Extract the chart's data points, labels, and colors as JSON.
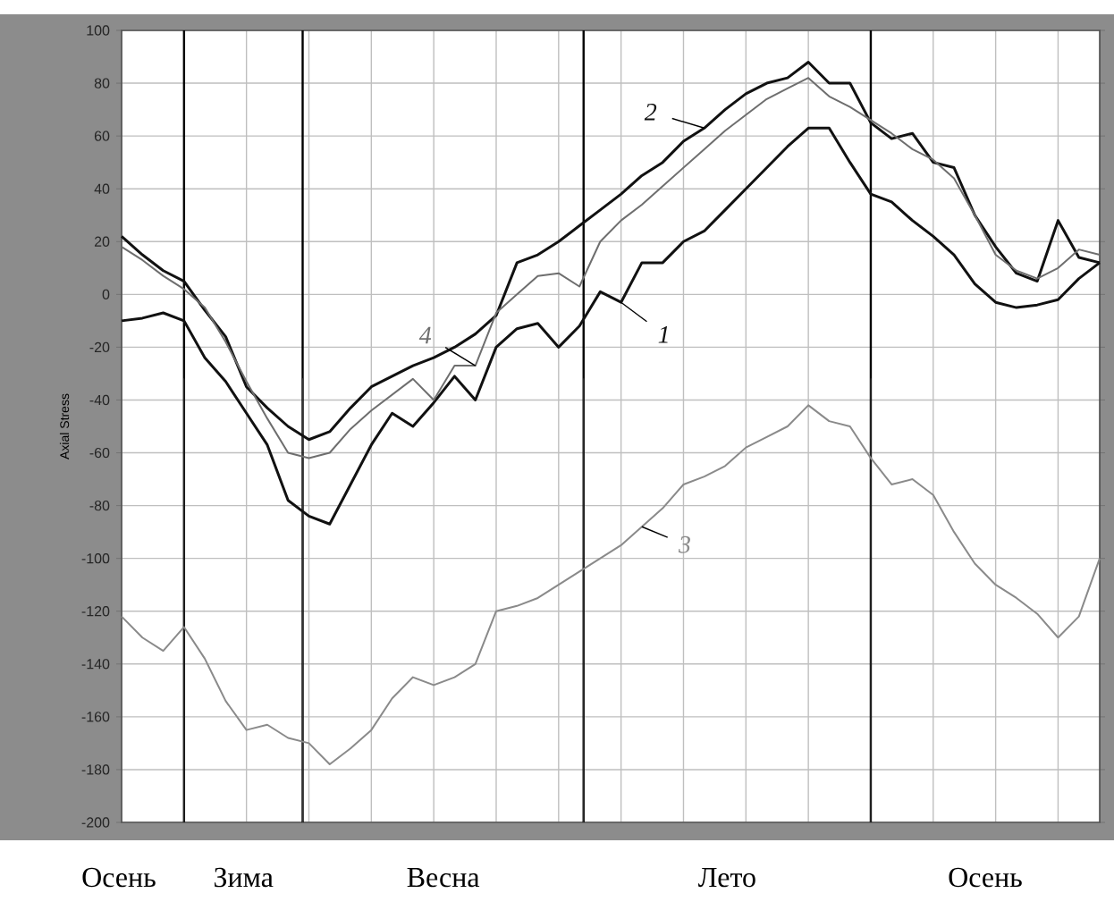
{
  "chart_data": {
    "type": "line",
    "ylabel": "Axial Stress",
    "categories": [
      null,
      null,
      null,
      null,
      null,
      null,
      null,
      null,
      null,
      null,
      null,
      null,
      null,
      null,
      null,
      null,
      null,
      null,
      null,
      null,
      null,
      null,
      null,
      null,
      null,
      null,
      null,
      null,
      null,
      null,
      null,
      null,
      null,
      null,
      null,
      null,
      null,
      null,
      null,
      null,
      null,
      null,
      null,
      null,
      null,
      null,
      null,
      null
    ],
    "ylim": [
      -200,
      100
    ],
    "yticks": [
      -200,
      -180,
      -160,
      -140,
      -120,
      -100,
      -80,
      -60,
      -40,
      -20,
      0,
      20,
      40,
      60,
      80,
      100
    ],
    "grid": true,
    "tick_labels": "y",
    "marker": "none",
    "line_style": "solid",
    "series": [
      {
        "name": "1",
        "color": "#111111",
        "values": [
          -10,
          -9,
          -7,
          -10,
          -24,
          -33,
          -45,
          -57,
          -78,
          -84,
          -87,
          -72,
          -57,
          -45,
          -50,
          -41,
          -31,
          -40,
          -20,
          -13,
          -11,
          -20,
          -12,
          1,
          -3,
          12,
          12,
          20,
          24,
          32,
          40,
          48,
          56,
          63,
          63,
          50,
          38,
          35,
          28,
          22,
          15,
          4,
          -3,
          -5,
          -4,
          -2,
          6,
          12
        ]
      },
      {
        "name": "2",
        "color": "#111111",
        "values": [
          22,
          15,
          9,
          5,
          -6,
          -16,
          -35,
          -43,
          -50,
          -55,
          -52,
          -43,
          -35,
          -31,
          -27,
          -24,
          -20,
          -15,
          -8,
          12,
          15,
          20,
          26,
          32,
          38,
          45,
          50,
          58,
          63,
          70,
          76,
          80,
          82,
          88,
          80,
          80,
          65,
          59,
          61,
          50,
          48,
          30,
          18,
          8,
          5,
          28,
          14,
          12
        ]
      },
      {
        "name": "3",
        "color": "#8a8a8a",
        "values": [
          -122,
          -130,
          -135,
          -126,
          -138,
          -154,
          -165,
          -163,
          -168,
          -170,
          -178,
          -172,
          -165,
          -153,
          -145,
          -148,
          -145,
          -140,
          -120,
          -118,
          -115,
          -110,
          -105,
          -100,
          -95,
          -88,
          -81,
          -72,
          -69,
          -65,
          -58,
          -54,
          -50,
          -42,
          -48,
          -50,
          -62,
          -72,
          -70,
          -76,
          -90,
          -102,
          -110,
          -115,
          -121,
          -130,
          -122,
          -100
        ]
      },
      {
        "name": "4",
        "color": "#6e6e6e",
        "values": [
          18,
          13,
          7,
          2,
          -5,
          -18,
          -33,
          -47,
          -60,
          -62,
          -60,
          -51,
          -44,
          -38,
          -32,
          -40,
          -27,
          -27,
          -7,
          0,
          7,
          8,
          3,
          20,
          28,
          34,
          41,
          48,
          55,
          62,
          68,
          74,
          78,
          82,
          75,
          71,
          66,
          61,
          55,
          51,
          44,
          30,
          15,
          9,
          6,
          10,
          17,
          15
        ]
      }
    ],
    "annotations": [
      "Осень",
      "Зима",
      "Весна",
      "Лето",
      "Осень"
    ]
  }
}
